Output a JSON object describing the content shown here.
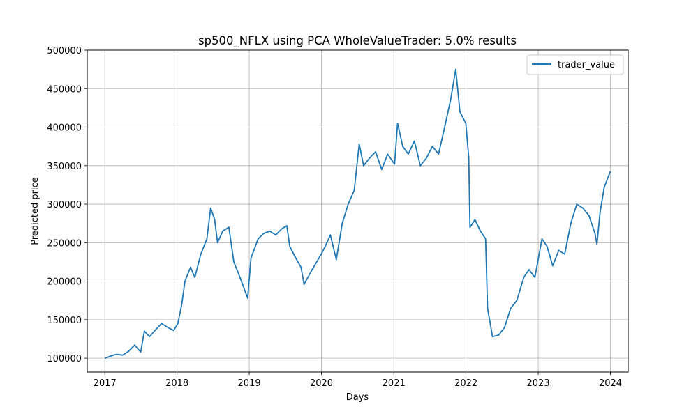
{
  "chart_data": {
    "type": "line",
    "title": "sp500_NFLX using PCA WholeValueTrader: 5.0% results",
    "xlabel": "Days",
    "ylabel": "Predicted price",
    "x_ticks": [
      "2017",
      "2018",
      "2019",
      "2020",
      "2021",
      "2022",
      "2023",
      "2024"
    ],
    "y_ticks": [
      "100000",
      "150000",
      "200000",
      "250000",
      "300000",
      "350000",
      "400000",
      "450000",
      "500000"
    ],
    "xlim": [
      "2016-10-04",
      "2024-03-31"
    ],
    "ylim": [
      82000,
      500000
    ],
    "grid": true,
    "legend_position": "top-right",
    "series": [
      {
        "name": "trader_value",
        "color": "#1f77b4",
        "points": [
          [
            "2017-01-03",
            100000
          ],
          [
            "2017-02-01",
            103000
          ],
          [
            "2017-03-01",
            105000
          ],
          [
            "2017-04-01",
            104000
          ],
          [
            "2017-05-01",
            109000
          ],
          [
            "2017-06-01",
            117000
          ],
          [
            "2017-07-01",
            108000
          ],
          [
            "2017-07-20",
            135000
          ],
          [
            "2017-08-15",
            128000
          ],
          [
            "2017-09-15",
            137000
          ],
          [
            "2017-10-15",
            145000
          ],
          [
            "2017-11-15",
            140000
          ],
          [
            "2017-12-15",
            136000
          ],
          [
            "2018-01-05",
            145000
          ],
          [
            "2018-01-25",
            170000
          ],
          [
            "2018-02-10",
            200000
          ],
          [
            "2018-03-10",
            218000
          ],
          [
            "2018-04-01",
            205000
          ],
          [
            "2018-05-01",
            235000
          ],
          [
            "2018-06-01",
            255000
          ],
          [
            "2018-06-20",
            295000
          ],
          [
            "2018-07-10",
            280000
          ],
          [
            "2018-07-25",
            250000
          ],
          [
            "2018-08-20",
            265000
          ],
          [
            "2018-09-20",
            270000
          ],
          [
            "2018-10-15",
            225000
          ],
          [
            "2018-11-15",
            205000
          ],
          [
            "2018-12-24",
            178000
          ],
          [
            "2019-01-10",
            230000
          ],
          [
            "2019-02-15",
            255000
          ],
          [
            "2019-03-15",
            262000
          ],
          [
            "2019-04-15",
            265000
          ],
          [
            "2019-05-15",
            260000
          ],
          [
            "2019-06-15",
            268000
          ],
          [
            "2019-07-10",
            272000
          ],
          [
            "2019-07-25",
            245000
          ],
          [
            "2019-08-20",
            232000
          ],
          [
            "2019-09-20",
            218000
          ],
          [
            "2019-10-05",
            196000
          ],
          [
            "2019-11-15",
            215000
          ],
          [
            "2019-12-31",
            235000
          ],
          [
            "2020-01-20",
            245000
          ],
          [
            "2020-02-15",
            260000
          ],
          [
            "2020-03-16",
            228000
          ],
          [
            "2020-04-15",
            275000
          ],
          [
            "2020-05-15",
            300000
          ],
          [
            "2020-06-15",
            318000
          ],
          [
            "2020-07-10",
            378000
          ],
          [
            "2020-08-01",
            350000
          ],
          [
            "2020-09-01",
            360000
          ],
          [
            "2020-10-01",
            368000
          ],
          [
            "2020-11-01",
            345000
          ],
          [
            "2020-12-01",
            365000
          ],
          [
            "2021-01-05",
            352000
          ],
          [
            "2021-01-20",
            405000
          ],
          [
            "2021-02-15",
            375000
          ],
          [
            "2021-03-15",
            365000
          ],
          [
            "2021-04-15",
            382000
          ],
          [
            "2021-05-15",
            350000
          ],
          [
            "2021-06-15",
            360000
          ],
          [
            "2021-07-15",
            375000
          ],
          [
            "2021-08-15",
            365000
          ],
          [
            "2021-09-15",
            400000
          ],
          [
            "2021-10-15",
            435000
          ],
          [
            "2021-11-10",
            475000
          ],
          [
            "2021-12-01",
            420000
          ],
          [
            "2021-12-31",
            405000
          ],
          [
            "2022-01-15",
            360000
          ],
          [
            "2022-01-21",
            270000
          ],
          [
            "2022-02-15",
            280000
          ],
          [
            "2022-03-15",
            265000
          ],
          [
            "2022-04-10",
            255000
          ],
          [
            "2022-04-20",
            165000
          ],
          [
            "2022-05-15",
            128000
          ],
          [
            "2022-06-15",
            130000
          ],
          [
            "2022-07-15",
            140000
          ],
          [
            "2022-08-15",
            165000
          ],
          [
            "2022-09-15",
            175000
          ],
          [
            "2022-10-20",
            205000
          ],
          [
            "2022-11-15",
            215000
          ],
          [
            "2022-12-15",
            205000
          ],
          [
            "2023-01-20",
            255000
          ],
          [
            "2023-02-15",
            245000
          ],
          [
            "2023-03-15",
            220000
          ],
          [
            "2023-04-15",
            240000
          ],
          [
            "2023-05-15",
            235000
          ],
          [
            "2023-06-15",
            275000
          ],
          [
            "2023-07-15",
            300000
          ],
          [
            "2023-08-15",
            295000
          ],
          [
            "2023-09-15",
            285000
          ],
          [
            "2023-10-15",
            262000
          ],
          [
            "2023-10-25",
            248000
          ],
          [
            "2023-11-10",
            290000
          ],
          [
            "2023-12-01",
            322000
          ],
          [
            "2023-12-31",
            342000
          ]
        ]
      }
    ]
  }
}
